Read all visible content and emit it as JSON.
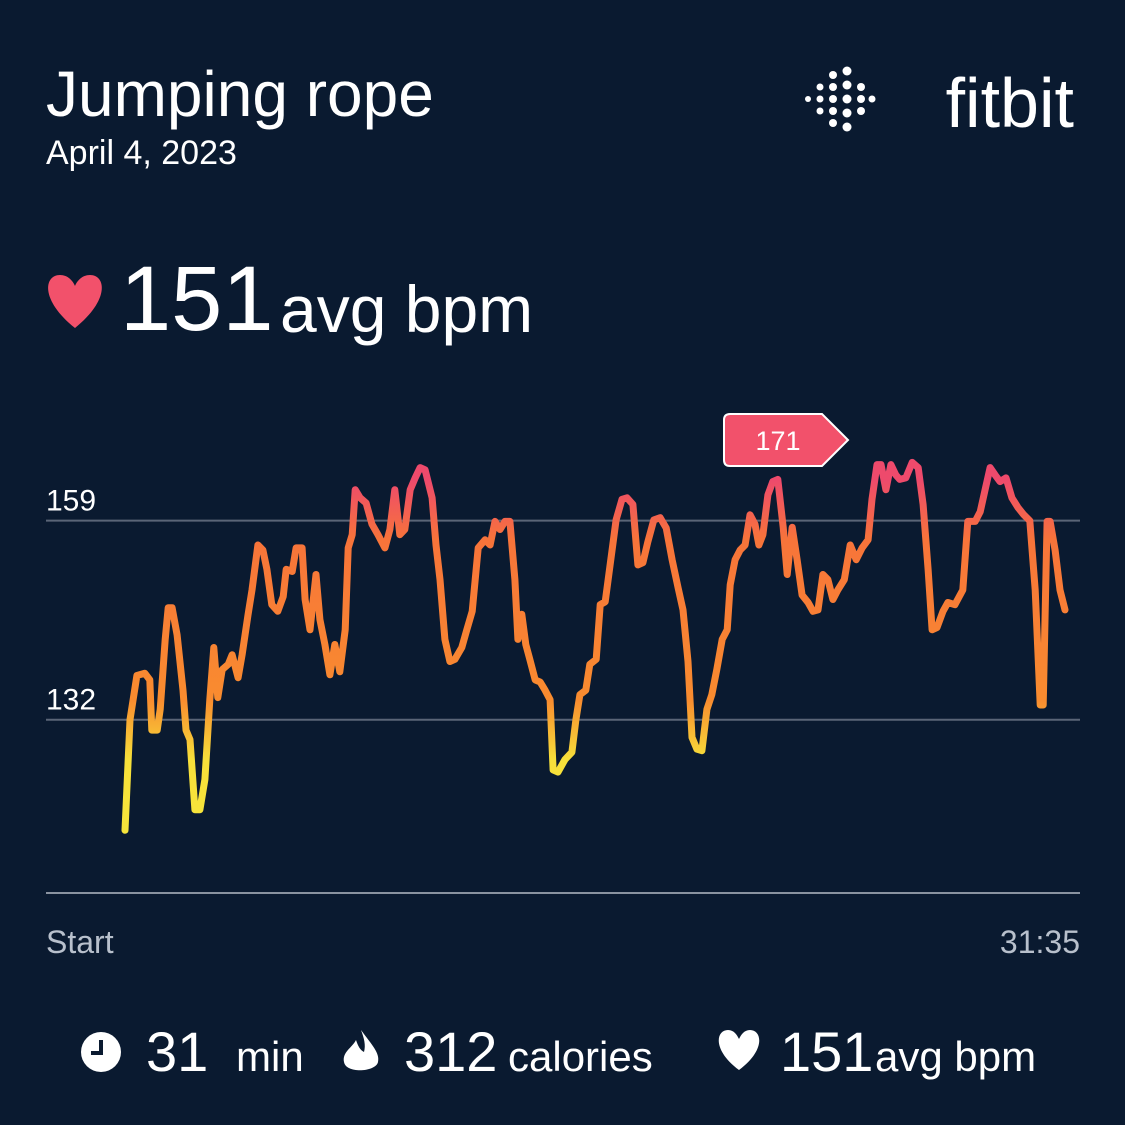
{
  "header": {
    "title": "Jumping rope",
    "date": "April 4, 2023",
    "logo": "fitbit"
  },
  "summary": {
    "value": 151,
    "unit": "avg bpm"
  },
  "chart_data": {
    "type": "line",
    "x": [
      0,
      10,
      24,
      40,
      50,
      54,
      65,
      71,
      81,
      87,
      95,
      105,
      117,
      123,
      131,
      141,
      151,
      161,
      171,
      179,
      187,
      196,
      208,
      216,
      228,
      236,
      248,
      256,
      268,
      278,
      286,
      296,
      308,
      319,
      325,
      337,
      345,
      357,
      363,
      373,
      385,
      393,
      403,
      413,
      423,
      433,
      444,
      450,
      458,
      464,
      474,
      486,
      498,
      510,
      524,
      534,
      544,
      554,
      564,
      575,
      585,
      595,
      605,
      619,
      627,
      635,
      645,
      655,
      665,
      679,
      689,
      700,
      712,
      726,
      736,
      746,
      756,
      766,
      776,
      786,
      792,
      800,
      808,
      816,
      827,
      837,
      847,
      857,
      863,
      873,
      887,
      901,
      909,
      917,
      929,
      937,
      950,
      958,
      968,
      978,
      990,
      1002,
      1012,
      1024,
      1034,
      1044,
      1054,
      1066,
      1079,
      1091,
      1103,
      1115,
      1125,
      1135,
      1143,
      1153,
      1163,
      1173,
      1183,
      1193,
      1204,
      1214,
      1220,
      1230,
      1240,
      1250,
      1260,
      1270,
      1278,
      1286,
      1296,
      1306,
      1316,
      1327,
      1335,
      1345,
      1355,
      1365,
      1377,
      1387,
      1397,
      1407,
      1417,
      1427,
      1437,
      1450,
      1462,
      1474,
      1486,
      1498,
      1506,
      1516,
      1524,
      1534,
      1544,
      1554,
      1562,
      1574,
      1587,
      1599,
      1609,
      1619,
      1627,
      1637,
      1649,
      1659,
      1673,
      1689,
      1699,
      1714,
      1724,
      1734,
      1744,
      1754,
      1764,
      1776,
      1788,
      1800,
      1812,
      1824,
      1835,
      1845,
      1851,
      1859,
      1865,
      1875,
      1885,
      1895
    ],
    "values": [
      117,
      132,
      138,
      138.3,
      137.4,
      130.6,
      130.6,
      133.4,
      142.9,
      147.2,
      147.2,
      143.5,
      136,
      130.6,
      129.3,
      119.8,
      119.8,
      123.9,
      134.7,
      141.8,
      135,
      138.8,
      139.5,
      140.8,
      137.7,
      140.8,
      146.2,
      149.6,
      155.7,
      155,
      152.4,
      147.6,
      146.7,
      148.7,
      152.4,
      152.1,
      155.3,
      155.3,
      148.3,
      144.2,
      151.7,
      145.6,
      142.2,
      138.1,
      142.2,
      138.5,
      144.2,
      155.3,
      157.1,
      163.2,
      162.1,
      161.4,
      158.5,
      157.1,
      155.3,
      157.8,
      163.2,
      157.1,
      157.8,
      163.2,
      164.8,
      166.2,
      165.9,
      162.1,
      155.7,
      151,
      142.9,
      139.9,
      140.2,
      141.8,
      144.2,
      146.7,
      155.3,
      156.4,
      155.7,
      158.9,
      157.8,
      158.9,
      158.9,
      151,
      142.9,
      146.3,
      142.2,
      140.2,
      137.4,
      137.1,
      136,
      134.7,
      125.2,
      124.9,
      126.6,
      127.6,
      132,
      135.4,
      136,
      139.5,
      140.2,
      147.6,
      148,
      153,
      159.1,
      161.9,
      162.1,
      161.2,
      153,
      153.3,
      156.1,
      159.1,
      159.4,
      158,
      153.7,
      149.9,
      146.9,
      139.9,
      129.6,
      128,
      127.8,
      133.4,
      135.4,
      138.8,
      142.9,
      144.2,
      150.3,
      153.7,
      155,
      155.7,
      159.8,
      158.5,
      155.7,
      157.1,
      162.5,
      164.3,
      164.6,
      158.1,
      151.7,
      158.1,
      153.7,
      148.9,
      147.9,
      146.7,
      146.9,
      151.7,
      151,
      148.3,
      149.6,
      151,
      155.7,
      153.7,
      155.3,
      156.4,
      161.9,
      166.6,
      166.6,
      163.2,
      166.6,
      165.2,
      164.6,
      164.8,
      166.9,
      166.2,
      161.2,
      152.4,
      144.2,
      144.5,
      146.7,
      147.9,
      147.6,
      149.6,
      158.9,
      158.9,
      160.2,
      163.2,
      166.2,
      165.2,
      164.3,
      164.8,
      162.1,
      160.8,
      159.8,
      159,
      149.6,
      134,
      134,
      158.9,
      158.9,
      155,
      149.6,
      146.9
    ],
    "xlim": [
      0,
      1895
    ],
    "xticks": [
      {
        "value": 0,
        "label": "Start"
      },
      {
        "value": 1895,
        "label": "31:35"
      }
    ],
    "ylim": [
      108.5,
      175.5
    ],
    "yticks": [
      132,
      159
    ],
    "grid": true,
    "peak_label": 171
  },
  "stats": [
    {
      "value": 31,
      "unit": "min"
    },
    {
      "value": 312,
      "unit": "calories"
    },
    {
      "value": 151,
      "unit": "avg bpm"
    }
  ]
}
